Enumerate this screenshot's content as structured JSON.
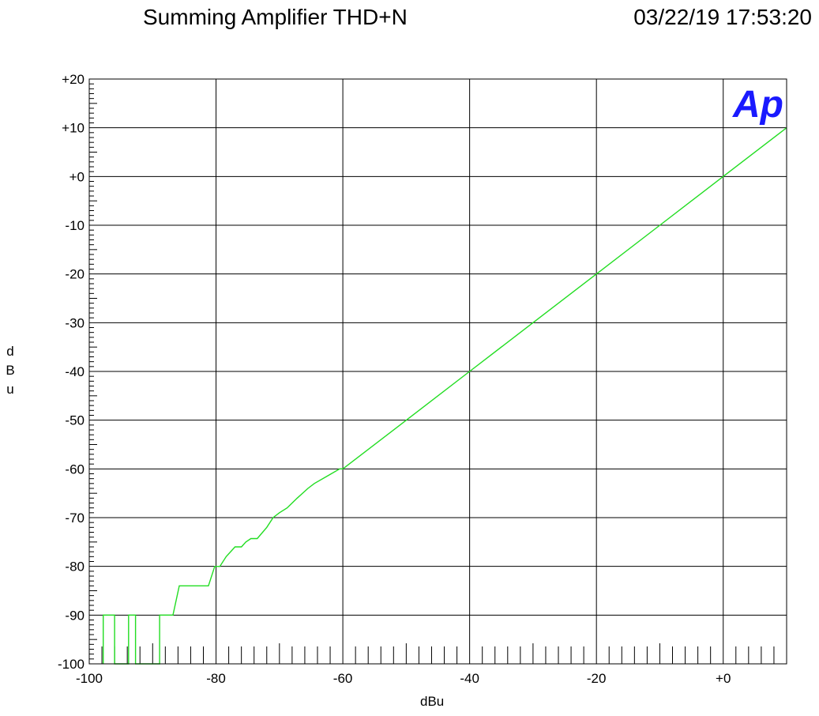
{
  "header": {
    "title": "Summing Amplifier THD+N",
    "timestamp": "03/22/19 17:53:20"
  },
  "logo": {
    "text": "Ap",
    "color": "#1a1aff"
  },
  "chart_data": {
    "type": "line",
    "title": "Summing Amplifier THD+N",
    "xlabel": "dBu",
    "ylabel": "dBu",
    "xlim": [
      -100,
      10
    ],
    "ylim": [
      -100,
      20
    ],
    "x_ticks": [
      -100,
      -80,
      -60,
      -40,
      -20,
      0
    ],
    "x_tick_labels": [
      "-100",
      "-80",
      "-60",
      "-40",
      "-20",
      "+0"
    ],
    "y_ticks": [
      20,
      10,
      0,
      -10,
      -20,
      -30,
      -40,
      -50,
      -60,
      -70,
      -80,
      -90,
      -100
    ],
    "y_tick_labels": [
      "+20",
      "+10",
      "+0",
      "-10",
      "-20",
      "-30",
      "-40",
      "-50",
      "-60",
      "-70",
      "-80",
      "-90",
      "-100"
    ],
    "grid": true,
    "series": [
      {
        "color": "#22dd22",
        "x": [
          -97.8,
          -97.8,
          -96,
          -96,
          -93.8,
          -93.8,
          -92.7,
          -92.7,
          -88.9,
          -88.9,
          -86.8,
          -85.8,
          -81.2,
          -80.2,
          -79.4,
          -78.4,
          -77,
          -76,
          -75.3,
          -74.5,
          -73.5,
          -72,
          -71,
          -70,
          -68.8,
          -67.2,
          -65.5,
          -64.5,
          -62.5,
          -60.5,
          -60,
          -50,
          -40,
          -30,
          -20,
          -10,
          0,
          10
        ],
        "y": [
          -100,
          -90,
          -90,
          -100,
          -100,
          -90,
          -90,
          -100,
          -100,
          -90,
          -90,
          -84,
          -84,
          -80,
          -80,
          -78,
          -76,
          -76,
          -75,
          -74.3,
          -74.3,
          -72,
          -70,
          -69,
          -68,
          -66,
          -64,
          -63,
          -61.5,
          -60,
          -60,
          -50,
          -40,
          -30,
          -20,
          -10,
          0,
          10
        ]
      }
    ]
  }
}
